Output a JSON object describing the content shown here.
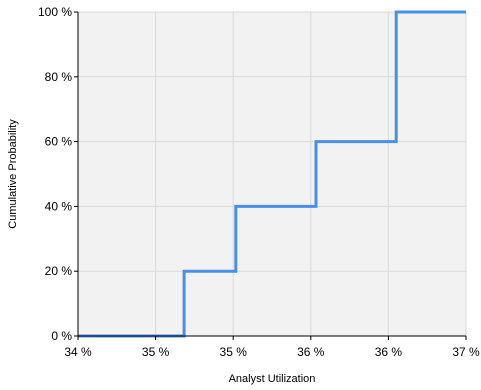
{
  "chart_data": {
    "type": "line",
    "subtype": "step",
    "title": "",
    "xlabel": "Analyst Utilization",
    "ylabel": "Cumulative Probability",
    "xlim": [
      34.0,
      37.0
    ],
    "ylim": [
      0,
      100
    ],
    "x_ticks": [
      {
        "value": 34.0,
        "label": "34 %"
      },
      {
        "value": 34.6,
        "label": "35 %"
      },
      {
        "value": 35.2,
        "label": "35 %"
      },
      {
        "value": 35.8,
        "label": "36 %"
      },
      {
        "value": 36.4,
        "label": "36 %"
      },
      {
        "value": 37.0,
        "label": "37 %"
      }
    ],
    "y_ticks": [
      {
        "value": 0,
        "label": "0 %"
      },
      {
        "value": 20,
        "label": "20 %"
      },
      {
        "value": 40,
        "label": "40 %"
      },
      {
        "value": 60,
        "label": "60 %"
      },
      {
        "value": 80,
        "label": "80 %"
      },
      {
        "value": 100,
        "label": "100 %"
      }
    ],
    "grid": true,
    "legend": "none",
    "series": [
      {
        "x": [
          34.0,
          34.82,
          34.82,
          35.22,
          35.22,
          35.84,
          35.84,
          36.46,
          36.46,
          37.0
        ],
        "y": [
          0,
          0,
          20,
          20,
          40,
          40,
          60,
          60,
          100,
          100
        ]
      }
    ],
    "colors": {
      "line": "#4a8fe7",
      "plot_background": "#f2f2f2",
      "grid": "#d9d9d9",
      "axis": "#000000"
    }
  }
}
